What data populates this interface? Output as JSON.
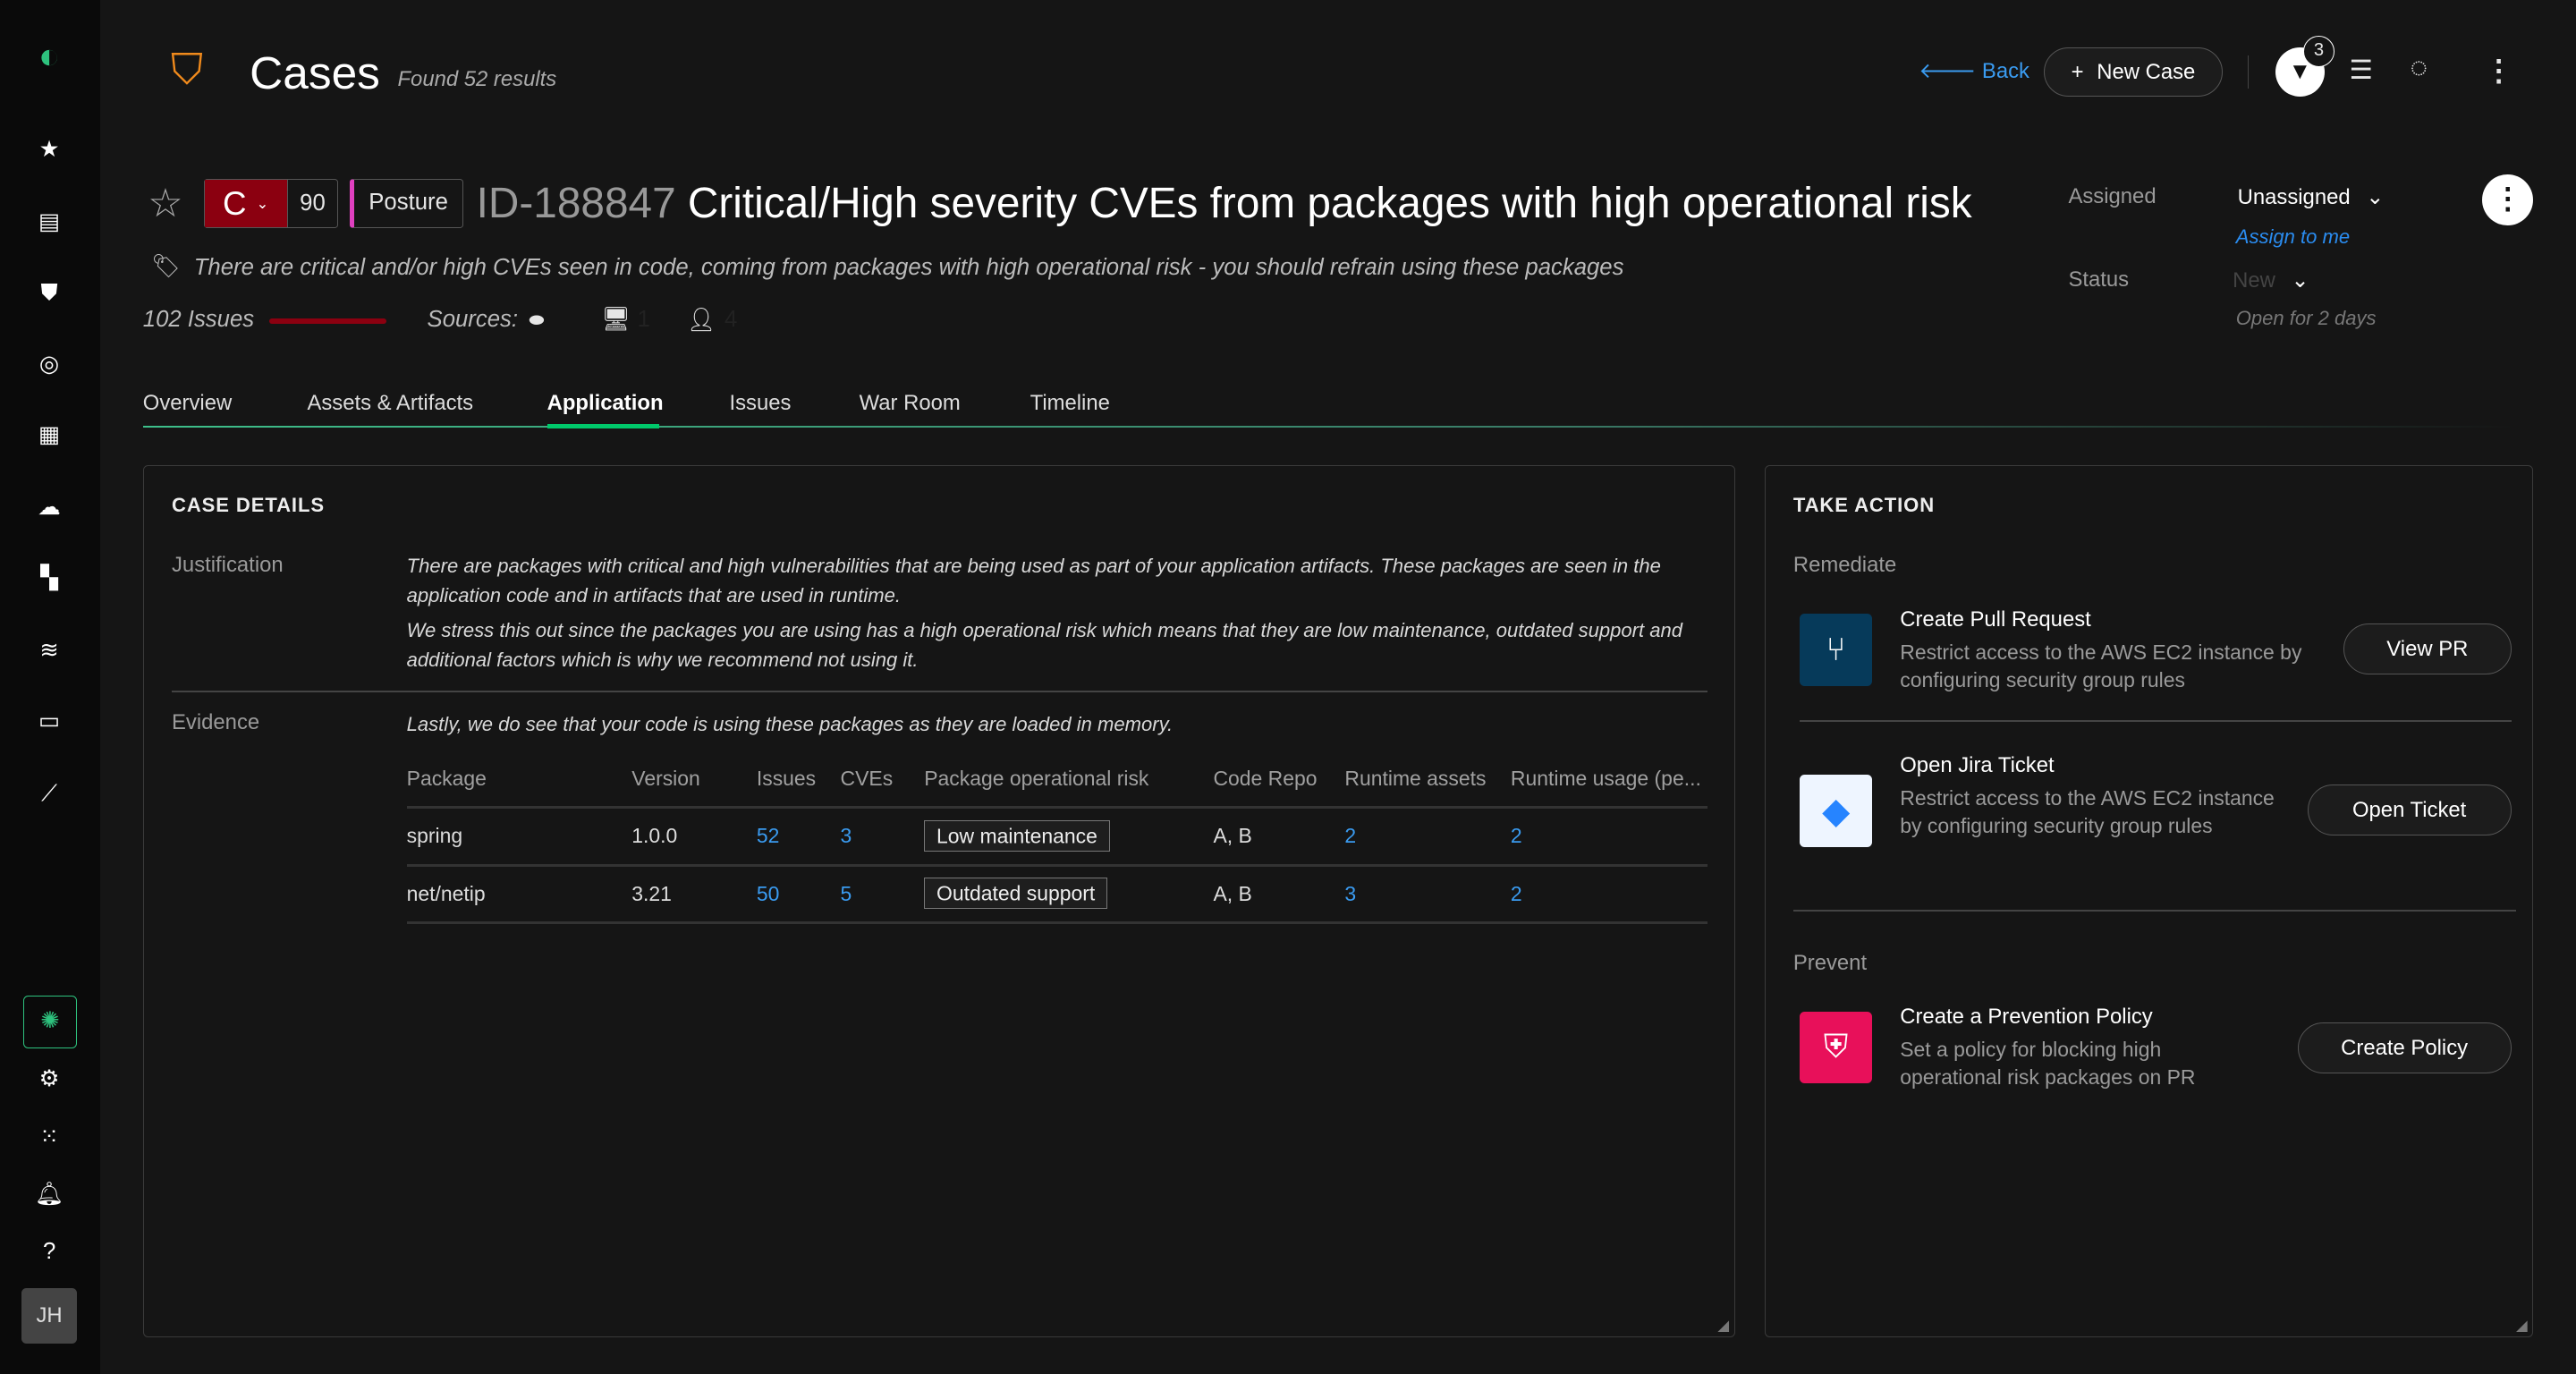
{
  "sidebar": {
    "avatar_initials": "JH",
    "icons": [
      "app-logo",
      "star-icon",
      "dashboard-icon",
      "shield-alert-icon",
      "target-icon",
      "clipboard-icon",
      "cloud-icon",
      "assets-icon",
      "layers-icon",
      "inbox-icon",
      "speed-icon",
      "ai-icon",
      "gear-icon",
      "grid-icon",
      "bell-icon",
      "help-icon"
    ]
  },
  "header": {
    "title": "Cases",
    "results": "Found 52 results",
    "back": "Back",
    "new_case": "New Case",
    "filter_count": "3"
  },
  "case": {
    "severity": "C",
    "score": "90",
    "category": "Posture",
    "id": "ID-188847",
    "title": "Critical/High severity CVEs from packages with high operational risk",
    "description": "There are critical and/or high CVEs seen in code, coming from packages with high operational risk - you should refrain using these packages",
    "issues": "102 Issues",
    "sources_label": "Sources:",
    "source_hosts": "1",
    "source_users": "4",
    "colors": {
      "severity": "#8b0010",
      "category_accent": "#e040c0",
      "accent": "#00c96b"
    }
  },
  "meta": {
    "assigned_label": "Assigned",
    "assigned_value": "Unassigned",
    "assign_to_me": "Assign to me",
    "status_label": "Status",
    "status_value": "New",
    "open_for": "Open for 2 days"
  },
  "tabs": [
    {
      "label": "Overview"
    },
    {
      "label": "Assets & Artifacts"
    },
    {
      "label": "Application",
      "active": true
    },
    {
      "label": "Issues"
    },
    {
      "label": "War Room"
    },
    {
      "label": "Timeline"
    }
  ],
  "details": {
    "title": "CASE DETAILS",
    "justification_label": "Justification",
    "justification_p1": "There are packages with critical and high vulnerabilities that are being used as part of your application artifacts. These packages are seen in the application code and in artifacts that are used in runtime.",
    "justification_p2": "We stress this out since the packages you are using has a high operational risk which means that they are low maintenance, outdated support and additional factors which is why we recommend not using it.",
    "evidence_label": "Evidence",
    "evidence_text": "Lastly, we do see that your code is using these packages as they are loaded in memory.",
    "columns": [
      "Package",
      "Version",
      "Issues",
      "CVEs",
      "Package operational risk",
      "Code Repo",
      "Runtime assets",
      "Runtime usage (pe..."
    ],
    "rows": [
      [
        "spring",
        "1.0.0",
        "52",
        "3",
        "Low maintenance",
        "A, B",
        "2",
        "2"
      ],
      [
        "net/netip",
        "3.21",
        "50",
        "5",
        "Outdated support",
        "A, B",
        "3",
        "2"
      ]
    ]
  },
  "actions": {
    "title": "TAKE ACTION",
    "remediate": "Remediate",
    "prevent": "Prevent",
    "items": [
      {
        "title": "Create Pull Request",
        "desc": "Restrict access to the AWS EC2 instance by configuring security group rules",
        "button": "View PR"
      },
      {
        "title": "Open Jira Ticket",
        "desc": "Restrict access to the AWS EC2 instance by configuring security group rules",
        "button": "Open Ticket"
      },
      {
        "title": "Create a Prevention Policy",
        "desc": "Set a policy for blocking high operational risk packages on PR",
        "button": "Create Policy"
      }
    ]
  }
}
